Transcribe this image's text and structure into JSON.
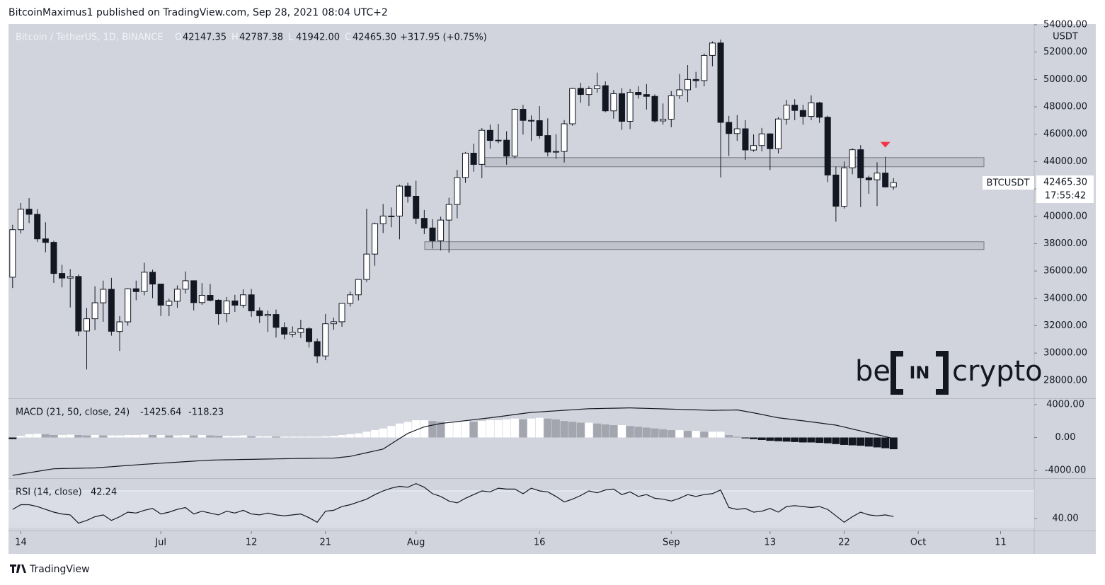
{
  "header": {
    "text": "BitcoinMaximus1 published on TradingView.com, Sep 28, 2021 08:04 UTC+2"
  },
  "footer": {
    "brand": "TradingView"
  },
  "watermark": [
    "be",
    "IN",
    "crypto"
  ],
  "chart_data": {
    "type": "candlestick",
    "title": "Bitcoin / TetherUS, 1D, BINANCE",
    "ohlc_legend": [
      {
        "letter": "O",
        "label": "42147.35"
      },
      {
        "letter": "H",
        "label": "42787.38"
      },
      {
        "letter": "L",
        "label": "41942.00"
      },
      {
        "letter": "C",
        "label": "42465.30"
      }
    ],
    "change": "+317.95 (+0.75%)",
    "symbol": "BTCUSDT",
    "last_price": {
      "value": 42465.3,
      "label": "42465.30"
    },
    "countdown": "17:55:42",
    "axis_unit": "USDT",
    "up_color": "#ffffff",
    "down_color": "#131722",
    "border_color": "#131722",
    "candles": {
      "open": [
        35546,
        39020,
        40516,
        40143,
        38349,
        38092,
        35820,
        35483,
        35600,
        31614,
        32510,
        33675,
        34663,
        31577,
        32283,
        34702,
        34494,
        35911,
        35045,
        33502,
        33786,
        34669,
        35288,
        33690,
        34220,
        33863,
        32876,
        33815,
        33502,
        34259,
        33087,
        32729,
        32820,
        31874,
        31383,
        31520,
        31778,
        30839,
        29790,
        32144,
        32287,
        33634,
        34261,
        35381,
        37237,
        39456,
        40019,
        40018,
        42206,
        41461,
        39850,
        39146,
        38207,
        39723,
        40862,
        42836,
        44614,
        43795,
        46280,
        45543,
        45562,
        44397,
        47819,
        47009,
        46991,
        45901,
        44686,
        44741,
        46760,
        49349,
        48900,
        49321,
        49546,
        47706,
        48961,
        46942,
        49059,
        48897,
        48767,
        46970,
        47099,
        48810,
        49247,
        50000,
        49918,
        51757,
        52666,
        46863,
        46048,
        46396,
        44842,
        45173,
        46025,
        44940,
        47103,
        48121,
        47737,
        47299,
        48292,
        47241,
        43016,
        40734,
        43546,
        44866,
        42810,
        42670,
        43160,
        42147.35
      ],
      "high": [
        39380,
        40978,
        41330,
        40527,
        39560,
        38203,
        36457,
        36137,
        35750,
        33298,
        34881,
        35298,
        35500,
        32711,
        34749,
        35297,
        36600,
        36100,
        35057,
        33977,
        34945,
        35967,
        35293,
        35118,
        35059,
        33929,
        34100,
        34262,
        34666,
        34679,
        33341,
        33114,
        33185,
        32249,
        31949,
        32435,
        31899,
        31063,
        32858,
        32591,
        33650,
        34500,
        35398,
        40550,
        39542,
        40900,
        40640,
        42316,
        42448,
        42599,
        40459,
        39780,
        39969,
        41350,
        43392,
        44700,
        45310,
        46454,
        46700,
        46743,
        46218,
        47886,
        48144,
        47372,
        48053,
        47160,
        46000,
        47033,
        49382,
        49757,
        49500,
        50500,
        49860,
        49227,
        49368,
        49300,
        49500,
        49667,
        48909,
        48250,
        49150,
        50400,
        51052,
        50558,
        51900,
        52780,
        52920,
        47340,
        47399,
        47031,
        45987,
        46460,
        46070,
        47250,
        48500,
        48557,
        48150,
        48843,
        48372,
        47347,
        43639,
        44000,
        44978,
        45200,
        42966,
        43950,
        44350,
        42787.38
      ],
      "low": [
        34757,
        38757,
        39506,
        38116,
        37365,
        35129,
        34803,
        33336,
        31251,
        28805,
        31683,
        32286,
        31275,
        30152,
        32000,
        33862,
        34225,
        34017,
        32711,
        32699,
        33316,
        34357,
        33125,
        33532,
        33777,
        32077,
        32261,
        33004,
        33307,
        32658,
        32202,
        31550,
        31133,
        31020,
        31164,
        31108,
        30408,
        29278,
        29482,
        31708,
        31925,
        33401,
        33851,
        35205,
        36383,
        38772,
        39200,
        38313,
        41000,
        39422,
        38690,
        37642,
        37508,
        37332,
        39853,
        42446,
        43261,
        42779,
        44936,
        45341,
        43770,
        44217,
        45971,
        45500,
        45660,
        44376,
        44203,
        43927,
        46622,
        48300,
        48050,
        49029,
        47600,
        47137,
        46315,
        46370,
        48600,
        47801,
        46853,
        46700,
        46512,
        48584,
        48349,
        49400,
        49500,
        50969,
        42843,
        44412,
        45513,
        44132,
        44722,
        44742,
        43370,
        44594,
        46700,
        47022,
        46700,
        47033,
        46829,
        42500,
        39600,
        40565,
        43069,
        40675,
        41646,
        40750,
        42098,
        41942
      ],
      "close": [
        39020,
        40516,
        40144,
        38349,
        38092,
        35820,
        35484,
        35600,
        31608,
        32509,
        33678,
        34664,
        31594,
        32283,
        34700,
        34494,
        35911,
        35045,
        33504,
        33786,
        34669,
        35286,
        33690,
        34220,
        33862,
        32875,
        33815,
        33502,
        34259,
        33086,
        32729,
        32820,
        31880,
        31383,
        31520,
        31778,
        30839,
        29790,
        32144,
        32287,
        33634,
        34258,
        35381,
        37237,
        39457,
        40019,
        40016,
        42206,
        41461,
        39845,
        39147,
        38207,
        39723,
        40862,
        42836,
        44614,
        43792,
        46285,
        45543,
        45561,
        44397,
        47820,
        47009,
        46991,
        45901,
        44696,
        44741,
        46760,
        49339,
        48905,
        49321,
        49546,
        47706,
        48960,
        46942,
        49058,
        48897,
        48767,
        46970,
        47100,
        48810,
        49246,
        49999,
        49915,
        51756,
        52663,
        46863,
        46048,
        46395,
        44850,
        45173,
        46025,
        44940,
        47111,
        48121,
        47737,
        47299,
        48292,
        47241,
        43015,
        40734,
        43543,
        44865,
        42810,
        42670,
        43160,
        42147.35,
        42465.3
      ]
    },
    "zones": [
      {
        "low": 43620,
        "high": 44290
      },
      {
        "low": 37570,
        "high": 38140
      }
    ],
    "zone_color": "#b2b5be",
    "marker_color": "#f23645",
    "xlim": [
      -0.5,
      124
    ],
    "xticks": [
      {
        "value": 1,
        "label": "14"
      },
      {
        "value": 18,
        "label": "Jul"
      },
      {
        "value": 29,
        "label": "12"
      },
      {
        "value": 38,
        "label": "21"
      },
      {
        "value": 49,
        "label": "Aug"
      },
      {
        "value": 64,
        "label": "16"
      },
      {
        "value": 80,
        "label": "Sep"
      },
      {
        "value": 92,
        "label": "13"
      },
      {
        "value": 101,
        "label": "22"
      },
      {
        "value": 110,
        "label": "Oct"
      },
      {
        "value": 120,
        "label": "11"
      }
    ],
    "ylim": [
      26750,
      54000
    ],
    "yticks": [
      {
        "value": 28000,
        "label": "28000.00"
      },
      {
        "value": 30000,
        "label": "30000.00"
      },
      {
        "value": 32000,
        "label": "32000.00"
      },
      {
        "value": 34000,
        "label": "34000.00"
      },
      {
        "value": 36000,
        "label": "36000.00"
      },
      {
        "value": 38000,
        "label": "38000.00"
      },
      {
        "value": 40000,
        "label": "40000.00"
      },
      {
        "value": 42000,
        "label": "42000.00"
      },
      {
        "value": 44000,
        "label": "44000.00"
      },
      {
        "value": 46000,
        "label": "46000.00"
      },
      {
        "value": 48000,
        "label": "48000.00"
      },
      {
        "value": 50000,
        "label": "50000.00"
      },
      {
        "value": 52000,
        "label": "52000.00"
      },
      {
        "value": 54000,
        "label": "54000.00"
      }
    ],
    "macd": {
      "title": "MACD (21, 50, close, 24)",
      "line_color": "#131722",
      "colors": {
        "growing_above": "#ffffff",
        "falling_above": "#a3a6af",
        "growing_below": "#5d606b",
        "falling_below": "#131722"
      },
      "ylim": [
        -4860,
        4600
      ],
      "yticks": [
        {
          "value": 4000,
          "label": "4000.00"
        },
        {
          "value": 0,
          "label": "0.00"
        },
        {
          "value": -4000,
          "label": "-4000.00"
        }
      ],
      "histogram": [
        -200,
        200,
        400,
        450,
        400,
        300,
        300,
        350,
        300,
        250,
        300,
        250,
        250,
        250,
        300,
        300,
        350,
        300,
        300,
        250,
        250,
        300,
        250,
        300,
        250,
        200,
        200,
        200,
        250,
        150,
        150,
        150,
        100,
        100,
        100,
        100,
        100,
        100,
        150,
        200,
        300,
        400,
        500,
        700,
        900,
        1100,
        1400,
        1700,
        1900,
        2100,
        2100,
        2000,
        1900,
        2000,
        2000,
        2000,
        1900,
        2000,
        2100,
        2100,
        2200,
        2300,
        2200,
        2300,
        2400,
        2300,
        2200,
        2000,
        1900,
        1800,
        1800,
        1700,
        1600,
        1500,
        1500,
        1400,
        1300,
        1200,
        1100,
        1000,
        900,
        900,
        800,
        800,
        700,
        700,
        700,
        300,
        100,
        -100,
        -200,
        -300,
        -400,
        -450,
        -500,
        -550,
        -600,
        -600,
        -650,
        -700,
        -800,
        -900,
        -950,
        -1000,
        -1100,
        -1200,
        -1300,
        -1425.64
      ],
      "line": [
        -4600,
        -4440,
        -4280,
        -4120,
        -3960,
        -3800,
        -3780,
        -3760,
        -3740,
        -3720,
        -3700,
        -3625,
        -3550,
        -3475,
        -3400,
        -3325,
        -3250,
        -3190,
        -3125,
        -3060,
        -3000,
        -2935,
        -2875,
        -2810,
        -2750,
        -2730,
        -2710,
        -2690,
        -2670,
        -2655,
        -2635,
        -2615,
        -2600,
        -2580,
        -2565,
        -2550,
        -2540,
        -2525,
        -2510,
        -2500,
        -2400,
        -2300,
        -2075,
        -1850,
        -1625,
        -1400,
        -770,
        -130,
        500,
        900,
        1300,
        1500,
        1700,
        1820,
        1930,
        2050,
        2170,
        2280,
        2400,
        2530,
        2660,
        2790,
        2920,
        3050,
        3110,
        3180,
        3240,
        3310,
        3370,
        3440,
        3500,
        3520,
        3540,
        3560,
        3580,
        3600,
        3570,
        3540,
        3510,
        3480,
        3450,
        3420,
        3390,
        3360,
        3330,
        3300,
        3320,
        3330,
        3350,
        3180,
        3000,
        2800,
        2600,
        2400,
        2280,
        2150,
        2030,
        1900,
        1770,
        1630,
        1500,
        1270,
        1030,
        800,
        570,
        340,
        110,
        -118.23
      ]
    },
    "rsi": {
      "title": "RSI (14, close)",
      "line_color": "#131722",
      "ylim": [
        27,
        82.3
      ],
      "yticks": [
        {
          "value": 40,
          "label": "40.00"
        }
      ],
      "bands": [
        30,
        70
      ],
      "values": [
        50,
        55,
        55,
        53,
        50,
        47,
        45,
        44,
        35,
        38,
        42,
        44,
        38,
        42,
        47,
        46,
        49,
        51,
        45,
        47,
        50,
        52,
        45,
        48,
        46,
        44,
        48,
        46,
        49,
        45,
        44,
        46,
        44,
        43,
        44,
        45,
        41,
        36,
        48,
        49,
        53,
        55,
        58,
        61,
        66,
        70,
        73,
        75,
        74,
        78,
        74,
        67,
        64,
        59,
        57,
        62,
        66,
        70,
        69,
        73,
        72,
        72,
        67,
        73,
        70,
        69,
        64,
        58,
        61,
        65,
        70,
        68,
        71,
        72,
        66,
        69,
        64,
        66,
        62,
        61,
        59,
        62,
        66,
        64,
        66,
        67,
        71,
        52,
        50,
        51,
        47,
        48,
        51,
        47,
        53,
        54,
        53,
        52,
        53,
        50,
        43,
        36,
        42,
        47,
        44,
        43,
        44,
        42.24
      ]
    }
  }
}
